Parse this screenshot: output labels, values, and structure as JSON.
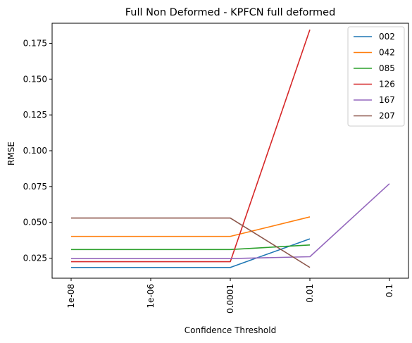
{
  "chart_data": {
    "type": "line",
    "title": "Full Non Deformed - KPFCN full deformed",
    "xlabel": "Confidence Threshold",
    "ylabel": "RMSE",
    "x_ticks": [
      "1e-08",
      "1e-06",
      "0.0001",
      "0.01",
      "0.1"
    ],
    "y_ticks": [
      "0.025",
      "0.050",
      "0.075",
      "0.100",
      "0.125",
      "0.150",
      "0.175"
    ],
    "y_tick_values": [
      0.025,
      0.05,
      0.075,
      0.1,
      0.125,
      0.15,
      0.175
    ],
    "ylim": [
      0.011,
      0.189
    ],
    "x_positions": [
      0,
      1,
      2,
      3,
      4
    ],
    "legend_position": "top-right",
    "series": [
      {
        "name": "002",
        "color": "#1f77b4",
        "x": [
          0,
          1,
          2,
          3
        ],
        "values": [
          0.0185,
          0.0185,
          0.0185,
          0.0385
        ]
      },
      {
        "name": "042",
        "color": "#ff7f0e",
        "x": [
          0,
          1,
          2,
          3
        ],
        "values": [
          0.0402,
          0.0402,
          0.0402,
          0.0538
        ]
      },
      {
        "name": "085",
        "color": "#2ca02c",
        "x": [
          0,
          1,
          2,
          3
        ],
        "values": [
          0.031,
          0.031,
          0.031,
          0.0342
        ]
      },
      {
        "name": "126",
        "color": "#d62728",
        "x": [
          0,
          1,
          2,
          3
        ],
        "values": [
          0.0225,
          0.0225,
          0.0225,
          0.1845
        ]
      },
      {
        "name": "167",
        "color": "#9467bd",
        "x": [
          0,
          1,
          2,
          3,
          4
        ],
        "values": [
          0.0247,
          0.0247,
          0.0247,
          0.026,
          0.077
        ]
      },
      {
        "name": "207",
        "color": "#8c564b",
        "x": [
          0,
          1,
          2,
          3
        ],
        "values": [
          0.053,
          0.053,
          0.053,
          0.0185
        ]
      }
    ]
  }
}
